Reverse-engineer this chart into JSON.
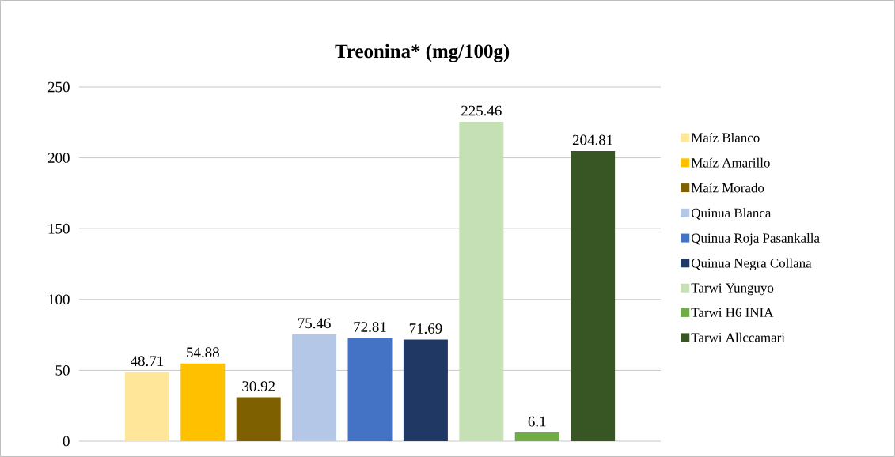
{
  "chart_data": {
    "type": "bar",
    "title": "Treonina* (mg/100g)",
    "categories": [
      null
    ],
    "series": [
      {
        "name": "Maíz Blanco",
        "color": "#ffe699",
        "values": [
          48.71
        ]
      },
      {
        "name": "Maíz Amarillo",
        "color": "#ffc000",
        "values": [
          54.88
        ]
      },
      {
        "name": "Maíz Morado",
        "color": "#7f6000",
        "values": [
          30.92
        ]
      },
      {
        "name": "Quinua Blanca",
        "color": "#b4c7e7",
        "values": [
          75.46
        ]
      },
      {
        "name": "Quinua Roja Pasankalla",
        "color": "#4472c4",
        "values": [
          72.81
        ]
      },
      {
        "name": "Quinua Negra Collana",
        "color": "#203864",
        "values": [
          71.69
        ]
      },
      {
        "name": "Tarwi Yunguyo",
        "color": "#c5e0b4",
        "values": [
          225.46
        ]
      },
      {
        "name": "Tarwi H6 INIA",
        "color": "#70ad47",
        "values": [
          6.1
        ]
      },
      {
        "name": "Tarwi Allccamari",
        "color": "#375623",
        "values": [
          204.81
        ]
      }
    ],
    "ylim": [
      0,
      250
    ],
    "yticks": [
      0,
      50,
      100,
      150,
      200,
      250
    ],
    "grid": "y",
    "legend": "right",
    "data_labels": true
  }
}
